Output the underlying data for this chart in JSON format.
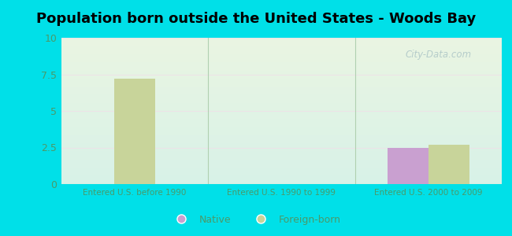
{
  "title": "Population born outside the United States - Woods Bay",
  "groups": [
    "Entered U.S. before 1990",
    "Entered U.S. 1990 to 1999",
    "Entered U.S. 2000 to 2009"
  ],
  "native_values": [
    0,
    0,
    2.5
  ],
  "foreign_values": [
    7.2,
    0,
    2.7
  ],
  "native_color": "#c9a0d0",
  "foreign_color": "#c8d49a",
  "ylim": [
    0,
    10
  ],
  "yticks": [
    0,
    2.5,
    5,
    7.5,
    10
  ],
  "ytick_labels": [
    "0",
    "2.5",
    "5",
    "7.5",
    "10"
  ],
  "outer_bg": "#00e0e8",
  "plot_bg_top": "#eaf5e2",
  "plot_bg_bottom": "#d8f2e8",
  "bar_width": 0.28,
  "title_fontsize": 13,
  "tick_label_color": "#4a9a6a",
  "axis_label_color": "#4a9a6a",
  "watermark": "City-Data.com",
  "watermark_color": "#b0c8c8",
  "grid_color": "#e0ece0",
  "separator_color": "#b0d0b0"
}
